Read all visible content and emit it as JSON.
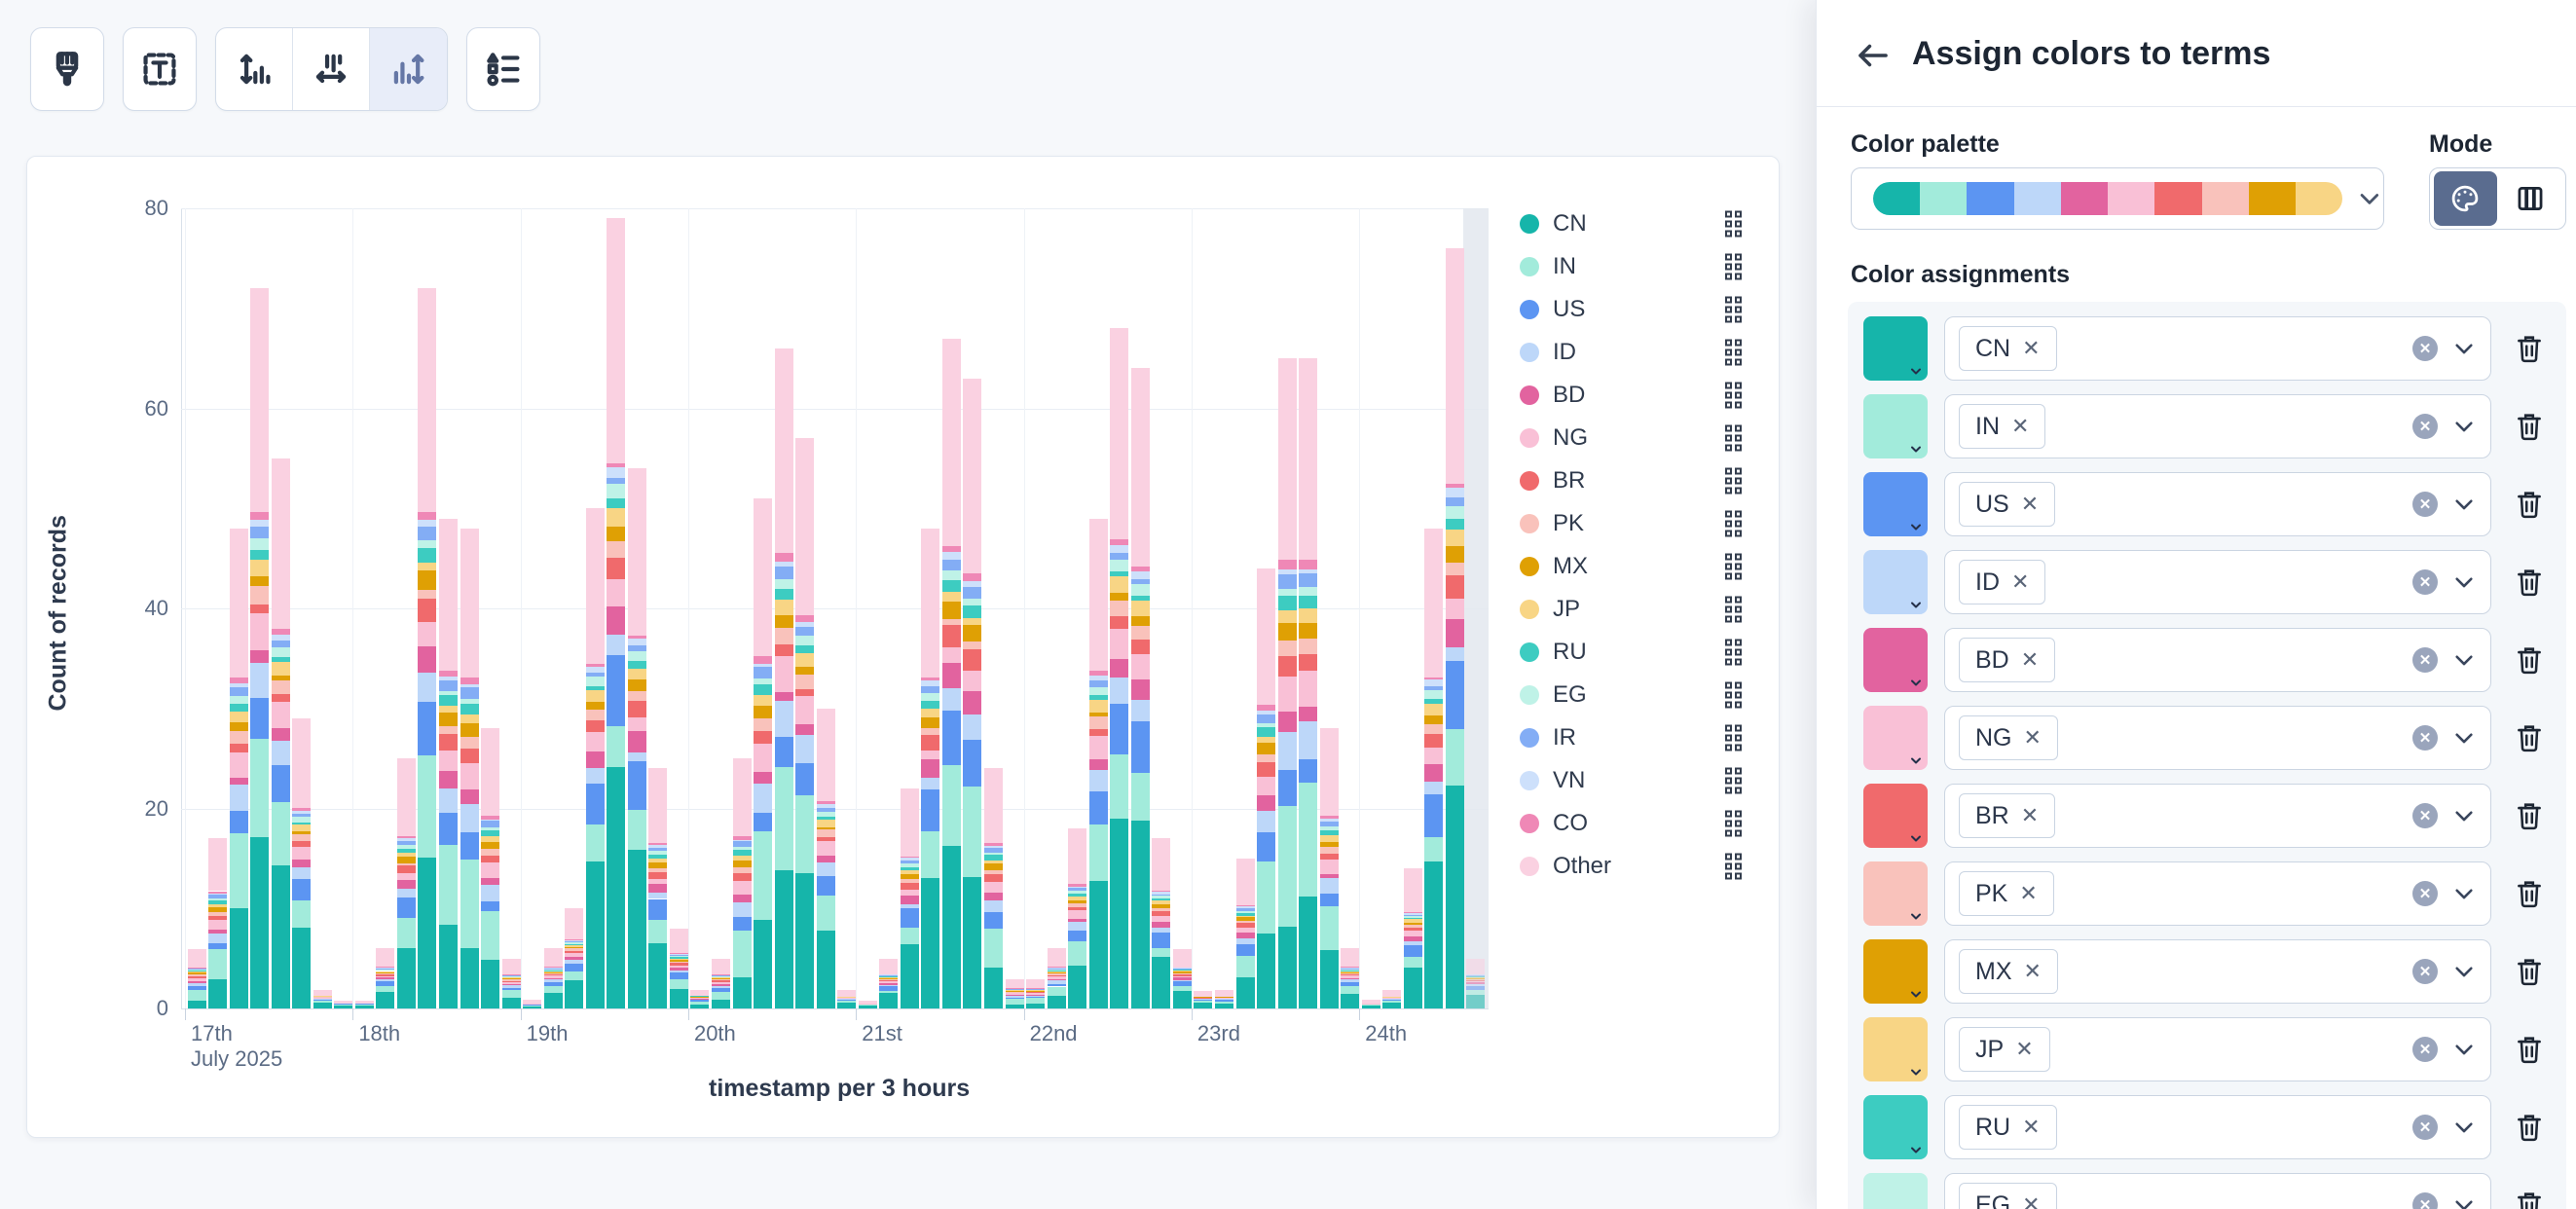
{
  "toolbar": {
    "buttons": [
      {
        "name": "paint-brush"
      },
      {
        "name": "text-annotation"
      },
      {
        "name": "axis-left-settings"
      },
      {
        "name": "axis-bottom-settings"
      },
      {
        "name": "axis-right-settings",
        "selected": true
      },
      {
        "name": "legend-settings"
      }
    ]
  },
  "chart": {
    "y_axis": {
      "title": "Count of records",
      "ticks": [
        0,
        20,
        40,
        60,
        80
      ],
      "max": 80
    },
    "x_axis": {
      "title": "timestamp per 3 hours",
      "tick_labels": [
        "17th",
        "18th",
        "19th",
        "20th",
        "21st",
        "22nd",
        "23rd",
        "24th"
      ],
      "first_tick_subline": "July 2025"
    },
    "legend": [
      {
        "label": "CN",
        "color": "#16b5aa"
      },
      {
        "label": "IN",
        "color": "#a2ebdb"
      },
      {
        "label": "US",
        "color": "#5c95f2"
      },
      {
        "label": "ID",
        "color": "#bdd7f9"
      },
      {
        "label": "BD",
        "color": "#e2639f"
      },
      {
        "label": "NG",
        "color": "#f9c0d6"
      },
      {
        "label": "BR",
        "color": "#f06a6c"
      },
      {
        "label": "PK",
        "color": "#f9c2bb"
      },
      {
        "label": "MX",
        "color": "#dfa004"
      },
      {
        "label": "JP",
        "color": "#f8d585"
      },
      {
        "label": "RU",
        "color": "#3dccc1"
      },
      {
        "label": "EG",
        "color": "#bff2e7"
      },
      {
        "label": "IR",
        "color": "#83adf5"
      },
      {
        "label": "VN",
        "color": "#cde0fb"
      },
      {
        "label": "CO",
        "color": "#ef88b6"
      },
      {
        "label": "Other",
        "color": "#fad1e1"
      }
    ]
  },
  "chart_data": {
    "type": "bar",
    "stacked": true,
    "title": "",
    "xlabel": "timestamp per 3 hours",
    "ylabel": "Count of records",
    "ylim": [
      0,
      80
    ],
    "grid": true,
    "legend_position": "right",
    "x_unit": "3-hour buckets from 17 July 2025 00:00 to 24 July 2025 ~18:00",
    "categories": [
      "17th",
      "18th",
      "19th",
      "20th",
      "21st",
      "22nd",
      "23rd",
      "24th"
    ],
    "buckets_per_day": 8,
    "bucket_totals": [
      6,
      17,
      48,
      72,
      55,
      29,
      2,
      1,
      1,
      6,
      25,
      72,
      49,
      48,
      28,
      5,
      1,
      6,
      10,
      50,
      79,
      54,
      24,
      8,
      2,
      5,
      25,
      51,
      66,
      57,
      30,
      2,
      1,
      5,
      22,
      48,
      67,
      63,
      24,
      3,
      3,
      6,
      18,
      49,
      68,
      64,
      17,
      6,
      2,
      2,
      15,
      44,
      65,
      65,
      28,
      6,
      1,
      2,
      14,
      48,
      76,
      5
    ],
    "partial_last_bucket": true,
    "series_order": [
      "CN",
      "IN",
      "US",
      "ID",
      "BD",
      "NG",
      "BR",
      "PK",
      "MX",
      "JP",
      "RU",
      "EG",
      "IR",
      "VN",
      "CO",
      "Other"
    ],
    "series_mix_estimate": {
      "CN": 0.24,
      "IN": 0.12,
      "US": 0.07,
      "ID": 0.04,
      "BD": 0.03,
      "NG": 0.04,
      "BR": 0.025,
      "PK": 0.02,
      "MX": 0.02,
      "JP": 0.02,
      "RU": 0.015,
      "EG": 0.015,
      "IR": 0.015,
      "VN": 0.01,
      "CO": 0.01,
      "Other": 0.31
    },
    "note": "Per-series segment values are estimated proportions of each bucket total read from the stacked bars."
  },
  "panel": {
    "title": "Assign colors to terms",
    "palette_label": "Color palette",
    "palette_colors": [
      "#16b5aa",
      "#a2ebdb",
      "#5c95f2",
      "#bdd7f9",
      "#e2639f",
      "#f9c0d6",
      "#f06a6c",
      "#f9c2bb",
      "#dfa004",
      "#f8d585"
    ],
    "mode_label": "Mode",
    "assignments_label": "Color assignments",
    "assignments": [
      {
        "term": "CN",
        "color": "#16b5aa"
      },
      {
        "term": "IN",
        "color": "#a2ebdb"
      },
      {
        "term": "US",
        "color": "#5c95f2"
      },
      {
        "term": "ID",
        "color": "#bdd7f9"
      },
      {
        "term": "BD",
        "color": "#e2639f"
      },
      {
        "term": "NG",
        "color": "#f9c0d6"
      },
      {
        "term": "BR",
        "color": "#f06a6c"
      },
      {
        "term": "PK",
        "color": "#f9c2bb"
      },
      {
        "term": "MX",
        "color": "#dfa004"
      },
      {
        "term": "JP",
        "color": "#f8d585"
      },
      {
        "term": "RU",
        "color": "#3dccc1"
      },
      {
        "term": "EG",
        "color": "#bff2e7"
      }
    ]
  }
}
